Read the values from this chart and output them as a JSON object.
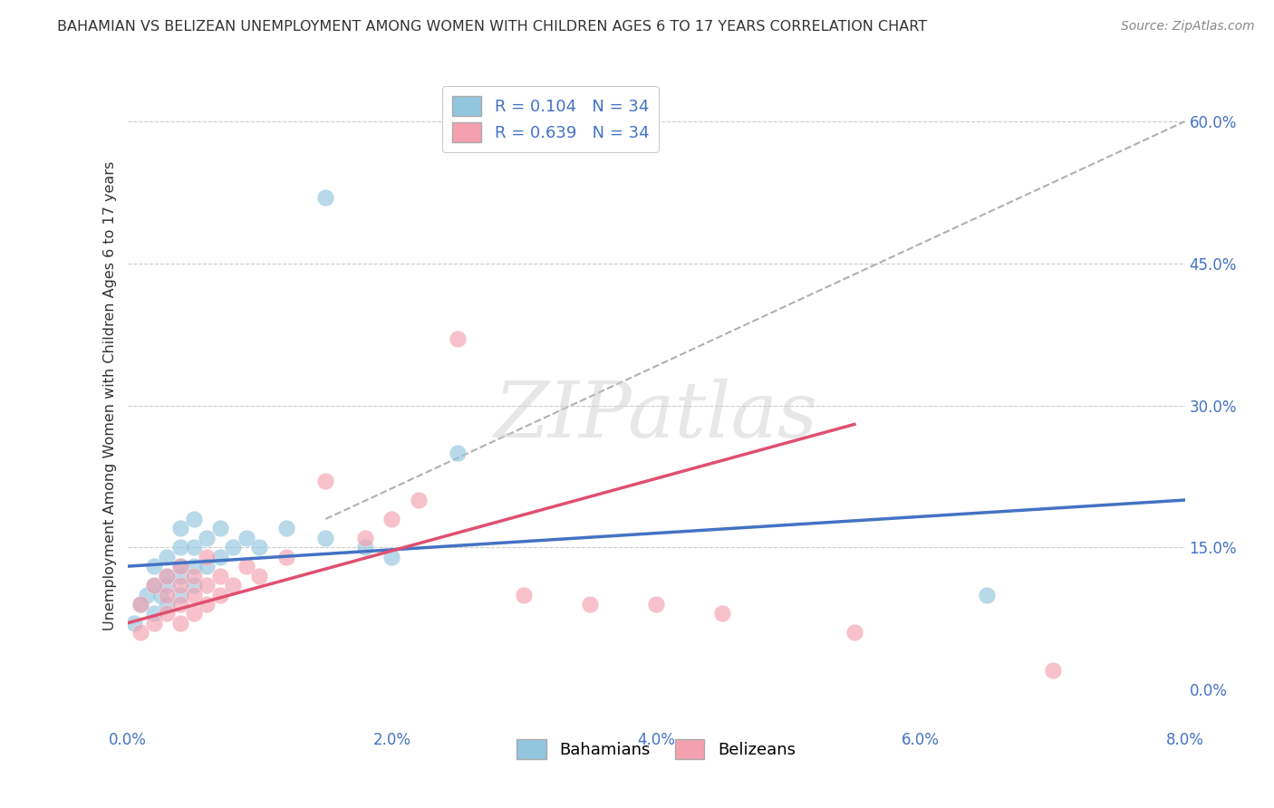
{
  "title": "BAHAMIAN VS BELIZEAN UNEMPLOYMENT AMONG WOMEN WITH CHILDREN AGES 6 TO 17 YEARS CORRELATION CHART",
  "source": "Source: ZipAtlas.com",
  "ylabel": "Unemployment Among Women with Children Ages 6 to 17 years",
  "xlim": [
    0.0,
    0.08
  ],
  "ylim": [
    -0.04,
    0.66
  ],
  "R_blue": 0.104,
  "R_pink": 0.639,
  "N": 34,
  "blue_color": "#92c5de",
  "pink_color": "#f4a0b0",
  "blue_line_color": "#4472c4",
  "pink_line_color": "#e05070",
  "legend_label_blue": "Bahamians",
  "legend_label_pink": "Belizeans",
  "watermark": "ZIPatlas",
  "background_color": "#ffffff",
  "bah_x": [
    0.0005,
    0.001,
    0.0015,
    0.002,
    0.002,
    0.002,
    0.0025,
    0.003,
    0.003,
    0.003,
    0.003,
    0.004,
    0.004,
    0.004,
    0.004,
    0.004,
    0.005,
    0.005,
    0.005,
    0.005,
    0.006,
    0.006,
    0.007,
    0.007,
    0.008,
    0.009,
    0.01,
    0.012,
    0.015,
    0.018,
    0.02,
    0.025,
    0.065,
    0.015
  ],
  "bah_y": [
    0.07,
    0.09,
    0.1,
    0.08,
    0.11,
    0.13,
    0.1,
    0.09,
    0.11,
    0.12,
    0.14,
    0.1,
    0.12,
    0.13,
    0.15,
    0.17,
    0.11,
    0.13,
    0.15,
    0.18,
    0.13,
    0.16,
    0.14,
    0.17,
    0.15,
    0.16,
    0.15,
    0.17,
    0.16,
    0.15,
    0.14,
    0.25,
    0.1,
    0.52
  ],
  "bel_x": [
    0.001,
    0.001,
    0.002,
    0.002,
    0.003,
    0.003,
    0.003,
    0.004,
    0.004,
    0.004,
    0.004,
    0.005,
    0.005,
    0.005,
    0.006,
    0.006,
    0.006,
    0.007,
    0.007,
    0.008,
    0.009,
    0.01,
    0.012,
    0.015,
    0.018,
    0.02,
    0.022,
    0.025,
    0.03,
    0.035,
    0.04,
    0.045,
    0.055,
    0.07
  ],
  "bel_y": [
    0.06,
    0.09,
    0.07,
    0.11,
    0.08,
    0.1,
    0.12,
    0.09,
    0.11,
    0.07,
    0.13,
    0.08,
    0.1,
    0.12,
    0.09,
    0.11,
    0.14,
    0.1,
    0.12,
    0.11,
    0.13,
    0.12,
    0.14,
    0.22,
    0.16,
    0.18,
    0.2,
    0.37,
    0.1,
    0.09,
    0.09,
    0.08,
    0.06,
    0.02
  ]
}
